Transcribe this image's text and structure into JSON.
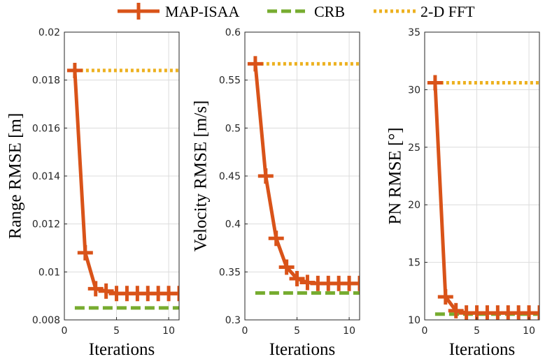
{
  "legend": {
    "items": [
      {
        "label": "MAP-ISAA",
        "color": "#D95319",
        "style": "solid-plus"
      },
      {
        "label": "CRB",
        "color": "#77AC30",
        "style": "dashed"
      },
      {
        "label": "2-D FFT",
        "color": "#EDB120",
        "style": "dotted"
      }
    ]
  },
  "chart_data": [
    {
      "type": "line",
      "xlabel": "Iterations",
      "ylabel": "Range RMSE [m]",
      "xlim": [
        0,
        11
      ],
      "ylim": [
        0.008,
        0.02
      ],
      "xticks": [
        0,
        5,
        10
      ],
      "yticks": [
        0.008,
        0.01,
        0.012,
        0.014,
        0.016,
        0.018,
        0.02
      ],
      "ytick_labels": [
        "0.008",
        "0.01",
        "0.012",
        "0.014",
        "0.016",
        "0.018",
        "0.02"
      ],
      "grid": true,
      "series": [
        {
          "name": "MAP-ISAA",
          "x": [
            1,
            2,
            3,
            4,
            5,
            6,
            7,
            8,
            9,
            10,
            11
          ],
          "values": [
            0.0184,
            0.0108,
            0.0093,
            0.0092,
            0.0091,
            0.0091,
            0.0091,
            0.0091,
            0.0091,
            0.0091,
            0.0091
          ]
        },
        {
          "name": "CRB",
          "x": [
            1,
            11
          ],
          "values": [
            0.0085,
            0.0085
          ]
        },
        {
          "name": "2-D FFT",
          "x": [
            1,
            11
          ],
          "values": [
            0.0184,
            0.0184
          ]
        }
      ]
    },
    {
      "type": "line",
      "xlabel": "Iterations",
      "ylabel": "Velocity RMSE [m/s]",
      "xlim": [
        0,
        11
      ],
      "ylim": [
        0.3,
        0.6
      ],
      "xticks": [
        0,
        5,
        10
      ],
      "yticks": [
        0.3,
        0.35,
        0.4,
        0.45,
        0.5,
        0.55,
        0.6
      ],
      "ytick_labels": [
        "0.3",
        "0.35",
        "0.4",
        "0.45",
        "0.5",
        "0.55",
        "0.6"
      ],
      "grid": true,
      "series": [
        {
          "name": "MAP-ISAA",
          "x": [
            1,
            2,
            3,
            4,
            5,
            6,
            7,
            8,
            9,
            10,
            11
          ],
          "values": [
            0.567,
            0.45,
            0.385,
            0.355,
            0.343,
            0.339,
            0.338,
            0.338,
            0.338,
            0.338,
            0.338
          ]
        },
        {
          "name": "CRB",
          "x": [
            1,
            11
          ],
          "values": [
            0.328,
            0.328
          ]
        },
        {
          "name": "2-D FFT",
          "x": [
            1,
            11
          ],
          "values": [
            0.567,
            0.567
          ]
        }
      ]
    },
    {
      "type": "line",
      "xlabel": "Iterations",
      "ylabel": "PN RMSE [°]",
      "xlim": [
        0,
        11
      ],
      "ylim": [
        10,
        35
      ],
      "xticks": [
        0,
        5,
        10
      ],
      "yticks": [
        10,
        15,
        20,
        25,
        30,
        35
      ],
      "ytick_labels": [
        "10",
        "15",
        "20",
        "25",
        "30",
        "35"
      ],
      "grid": true,
      "series": [
        {
          "name": "MAP-ISAA",
          "x": [
            1,
            2,
            3,
            4,
            5,
            6,
            7,
            8,
            9,
            10,
            11
          ],
          "values": [
            30.6,
            12.0,
            10.8,
            10.6,
            10.6,
            10.6,
            10.6,
            10.6,
            10.6,
            10.6,
            10.6
          ]
        },
        {
          "name": "CRB",
          "x": [
            1,
            11
          ],
          "values": [
            10.5,
            10.5
          ]
        },
        {
          "name": "2-D FFT",
          "x": [
            1,
            11
          ],
          "values": [
            30.6,
            30.6
          ]
        }
      ]
    }
  ]
}
